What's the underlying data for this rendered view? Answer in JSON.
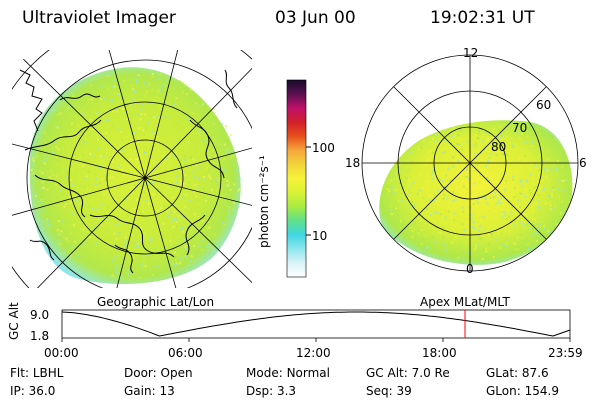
{
  "header": {
    "title": "Ultraviolet Imager",
    "date": "03 Jun 00",
    "time": "19:02:31 UT"
  },
  "colorbar": {
    "label": "photon cm⁻²s⁻¹",
    "ticks": [
      "100",
      "10"
    ],
    "colors": [
      "#ffffff",
      "#d9f3f7",
      "#8fe6ee",
      "#3fd7e2",
      "#5fe08a",
      "#a8ec42",
      "#d9f236",
      "#f7f23a",
      "#f2d43a",
      "#f7a63a",
      "#e8501c",
      "#d2202a",
      "#c0106a",
      "#5a1050",
      "#180a2c"
    ]
  },
  "left_map": {
    "caption": "Geographic Lat/Lon",
    "colors": {
      "emission": "#d8f03a",
      "edge": "#8fe6ee",
      "dim": "#f2f25a"
    }
  },
  "right_map": {
    "caption": "Apex MLat/MLT",
    "mlt_labels": {
      "top": "12",
      "left": "18",
      "right": "6",
      "bottom": "0"
    },
    "lat_labels": [
      "60",
      "70",
      "80"
    ]
  },
  "altitude_plot": {
    "ylabel": "GC Alt",
    "yticks": [
      "9.0",
      "1.8"
    ],
    "xticks": [
      "00:00",
      "06:00",
      "12:00",
      "18:00",
      "23:59"
    ],
    "current_time_hours": 19.04,
    "marker_color": "#ff0000"
  },
  "info": {
    "row1": [
      {
        "label": "Flt:",
        "value": "LBHL"
      },
      {
        "label": "Door:",
        "value": "Open"
      },
      {
        "label": "Mode:",
        "value": "Normal"
      },
      {
        "label": "GC Alt:",
        "value": "7.0 Re"
      },
      {
        "label": "GLat:",
        "value": "87.6"
      }
    ],
    "row2": [
      {
        "label": "IP:",
        "value": "36.0"
      },
      {
        "label": "Gain:",
        "value": "13"
      },
      {
        "label": "Dsp:",
        "value": "3.3"
      },
      {
        "label": "Seq:",
        "value": "39"
      },
      {
        "label": "GLon:",
        "value": "154.9"
      }
    ]
  }
}
